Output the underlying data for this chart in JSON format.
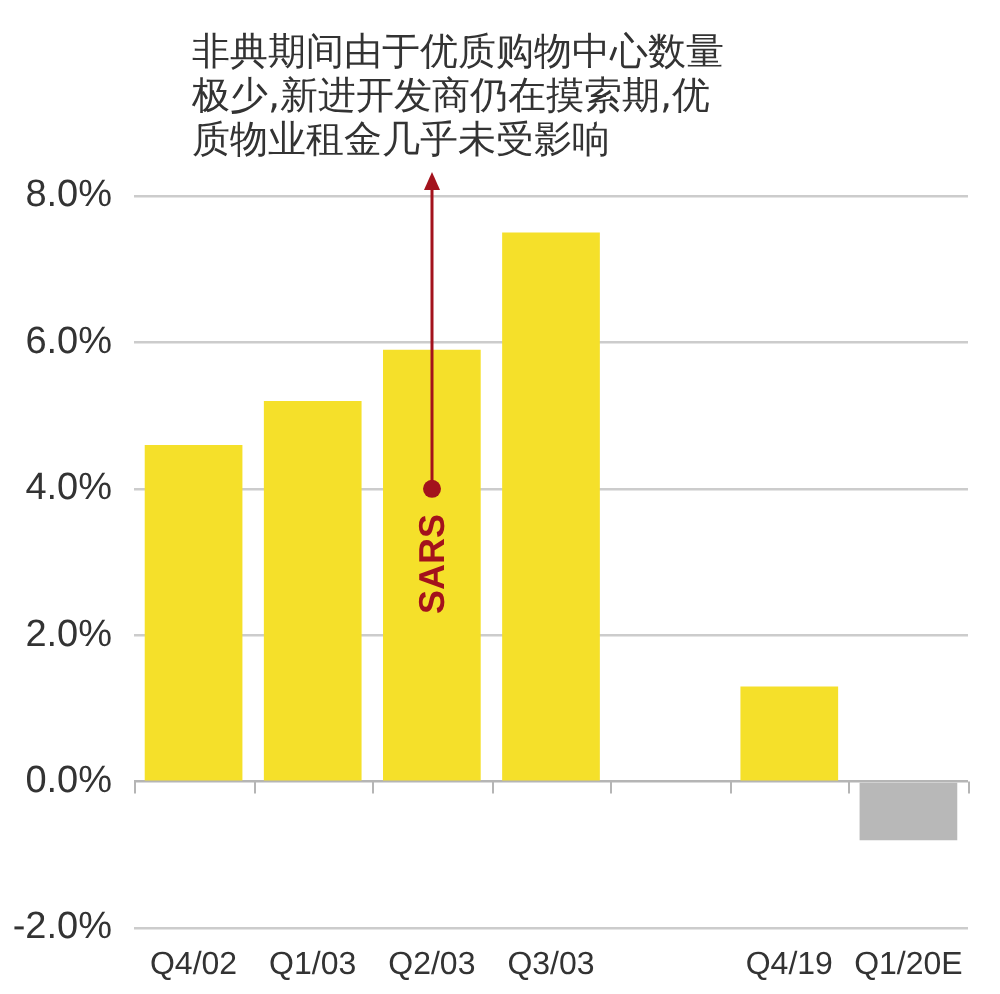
{
  "chart_data": {
    "type": "bar",
    "categories": [
      "Q4/02",
      "Q1/03",
      "Q2/03",
      "Q3/03",
      null,
      "Q4/19",
      "Q1/20E"
    ],
    "values": [
      4.6,
      5.2,
      5.9,
      7.5,
      null,
      1.3,
      -0.8
    ],
    "colors": [
      "#f5e02a",
      "#f5e02a",
      "#f5e02a",
      "#f5e02a",
      "#f5e02a",
      "#f5e02a",
      "#b8b8b8"
    ],
    "ylim": [
      -2,
      8
    ],
    "yticks": [
      {
        "value": -2,
        "label": "-2.0%"
      },
      {
        "value": 0,
        "label": "0.0%"
      },
      {
        "value": 2,
        "label": "2.0%"
      },
      {
        "value": 4,
        "label": "4.0%"
      },
      {
        "value": 6,
        "label": "6.0%"
      },
      {
        "value": 8,
        "label": "8.0%"
      }
    ],
    "grid": "y",
    "annotations": [
      "非典期间由于优质购物中心数量极少,新进开发商仍在摸索期,优质物业租金几乎未受影响",
      {
        "text": "SARS",
        "x": "Q2/03",
        "y": 4.0
      }
    ]
  }
}
